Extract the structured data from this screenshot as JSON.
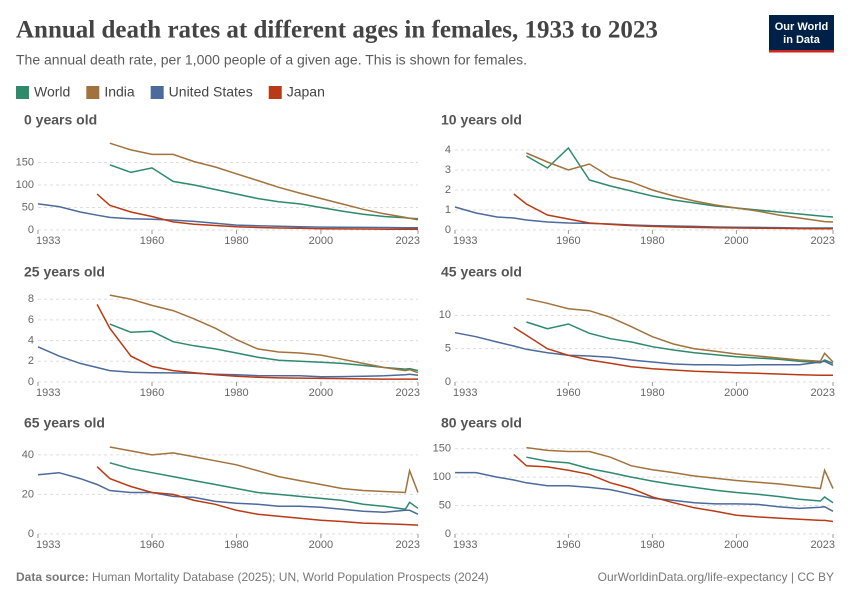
{
  "title": "Annual death rates at different ages in females, 1933 to 2023",
  "subtitle": "The annual death rate, per 1,000 people of a given age. This is shown for females.",
  "logo": [
    "Our World",
    "in Data"
  ],
  "source_label": "Data source:",
  "source": "Human Mortality Database (2025); UN, World Population Prospects (2024)",
  "url": "OurWorldinData.org/life-expectancy | CC BY",
  "chart_data": [
    {
      "type": "line",
      "title": "0 years old",
      "x": [
        1933,
        1938,
        1943,
        1947,
        1950,
        1955,
        1960,
        1965,
        1970,
        1975,
        1980,
        1985,
        1990,
        1995,
        2000,
        2005,
        2010,
        2015,
        2020,
        2021,
        2023
      ],
      "xlim": [
        1933,
        2023
      ],
      "xticks": [
        1933,
        1960,
        1980,
        2000,
        2023
      ],
      "ylim": [
        0,
        200
      ],
      "yticks": [
        0,
        50,
        100,
        150
      ],
      "grid": true,
      "series": [
        {
          "name": "World",
          "color": "#2d8a6a",
          "values": [
            null,
            null,
            null,
            null,
            145,
            128,
            138,
            108,
            100,
            90,
            80,
            70,
            63,
            58,
            50,
            42,
            35,
            30,
            27,
            26,
            25
          ]
        },
        {
          "name": "India",
          "color": "#a2723c",
          "values": [
            null,
            null,
            null,
            null,
            193,
            178,
            168,
            168,
            152,
            140,
            125,
            110,
            95,
            82,
            70,
            58,
            46,
            36,
            28,
            26,
            23
          ]
        },
        {
          "name": "United States",
          "color": "#4c6a9c",
          "values": [
            58,
            52,
            40,
            33,
            28,
            25,
            24,
            22,
            19,
            15,
            11,
            9.5,
            8.5,
            7,
            6.5,
            6.2,
            5.8,
            5.5,
            5.2,
            5.1,
            5.0
          ]
        },
        {
          "name": "Japan",
          "color": "#b93a14",
          "values": [
            null,
            null,
            null,
            80,
            55,
            40,
            30,
            18,
            13,
            10,
            7,
            5.5,
            4.5,
            4,
            3,
            2.5,
            2.2,
            1.8,
            1.6,
            1.6,
            1.5
          ]
        }
      ]
    },
    {
      "type": "line",
      "title": "10 years old",
      "x": [
        1933,
        1938,
        1943,
        1947,
        1950,
        1955,
        1960,
        1965,
        1970,
        1975,
        1980,
        1985,
        1990,
        1995,
        2000,
        2005,
        2010,
        2015,
        2020,
        2021,
        2023
      ],
      "xlim": [
        1933,
        2023
      ],
      "xticks": [
        1933,
        1960,
        1980,
        2000,
        2023
      ],
      "ylim": [
        0,
        4.5
      ],
      "yticks": [
        0,
        1,
        2,
        3,
        4
      ],
      "grid": true,
      "series": [
        {
          "color": "#2d8a6a",
          "values": [
            null,
            null,
            null,
            null,
            3.7,
            3.1,
            4.1,
            2.5,
            2.2,
            1.95,
            1.7,
            1.5,
            1.35,
            1.2,
            1.1,
            1.0,
            0.9,
            0.8,
            0.7,
            0.68,
            0.65
          ]
        },
        {
          "color": "#a2723c",
          "values": [
            null,
            null,
            null,
            null,
            3.85,
            3.4,
            3.0,
            3.3,
            2.65,
            2.4,
            2.0,
            1.7,
            1.45,
            1.25,
            1.1,
            0.95,
            0.75,
            0.6,
            0.45,
            0.42,
            0.4
          ]
        },
        {
          "color": "#4c6a9c",
          "values": [
            1.15,
            0.85,
            0.65,
            0.6,
            0.5,
            0.4,
            0.35,
            0.33,
            0.3,
            0.25,
            0.22,
            0.2,
            0.18,
            0.15,
            0.14,
            0.13,
            0.12,
            0.1,
            0.1,
            0.1,
            0.1
          ]
        },
        {
          "color": "#b93a14",
          "values": [
            null,
            null,
            null,
            1.8,
            1.3,
            0.75,
            0.55,
            0.35,
            0.28,
            0.22,
            0.18,
            0.15,
            0.13,
            0.11,
            0.1,
            0.09,
            0.08,
            0.07,
            0.06,
            0.06,
            0.06
          ]
        }
      ]
    },
    {
      "type": "line",
      "title": "25 years old",
      "x": [
        1933,
        1938,
        1943,
        1947,
        1950,
        1955,
        1960,
        1965,
        1970,
        1975,
        1980,
        1985,
        1990,
        1995,
        2000,
        2005,
        2010,
        2015,
        2020,
        2021,
        2023
      ],
      "xlim": [
        1933,
        2023
      ],
      "xticks": [
        1933,
        1960,
        1980,
        2000,
        2023
      ],
      "ylim": [
        0,
        8.7
      ],
      "yticks": [
        0,
        2,
        4,
        6,
        8
      ],
      "grid": true,
      "series": [
        {
          "color": "#2d8a6a",
          "values": [
            null,
            null,
            null,
            null,
            5.6,
            4.8,
            4.9,
            3.9,
            3.5,
            3.2,
            2.8,
            2.4,
            2.1,
            2.0,
            1.9,
            1.8,
            1.6,
            1.4,
            1.25,
            1.3,
            1.1
          ]
        },
        {
          "color": "#a2723c",
          "values": [
            null,
            null,
            null,
            null,
            8.4,
            8.0,
            7.4,
            6.9,
            6.1,
            5.2,
            4.1,
            3.2,
            2.9,
            2.8,
            2.6,
            2.2,
            1.8,
            1.4,
            1.1,
            1.2,
            0.9
          ]
        },
        {
          "color": "#4c6a9c",
          "values": [
            3.4,
            2.5,
            1.8,
            1.4,
            1.1,
            0.95,
            0.9,
            0.88,
            0.85,
            0.75,
            0.7,
            0.62,
            0.6,
            0.6,
            0.5,
            0.52,
            0.55,
            0.6,
            0.7,
            0.75,
            0.65
          ]
        },
        {
          "color": "#b93a14",
          "values": [
            null,
            null,
            null,
            7.5,
            5.2,
            2.5,
            1.5,
            1.1,
            0.9,
            0.7,
            0.55,
            0.45,
            0.4,
            0.38,
            0.35,
            0.33,
            0.3,
            0.28,
            0.28,
            0.28,
            0.28
          ]
        }
      ]
    },
    {
      "type": "line",
      "title": "45 years old",
      "x": [
        1933,
        1938,
        1943,
        1947,
        1950,
        1955,
        1960,
        1965,
        1970,
        1975,
        1980,
        1985,
        1990,
        1995,
        2000,
        2005,
        2010,
        2015,
        2020,
        2021,
        2023
      ],
      "xlim": [
        1933,
        2023
      ],
      "xticks": [
        1933,
        1960,
        1980,
        2000,
        2023
      ],
      "ylim": [
        0,
        13.5
      ],
      "yticks": [
        0,
        5,
        10
      ],
      "grid": true,
      "series": [
        {
          "color": "#2d8a6a",
          "values": [
            null,
            null,
            null,
            null,
            9.0,
            8.0,
            8.7,
            7.3,
            6.5,
            6.0,
            5.3,
            4.8,
            4.4,
            4.1,
            3.8,
            3.6,
            3.4,
            3.1,
            2.9,
            3.3,
            2.8
          ]
        },
        {
          "color": "#a2723c",
          "values": [
            null,
            null,
            null,
            null,
            12.5,
            11.8,
            11.0,
            10.7,
            9.7,
            8.3,
            6.8,
            5.7,
            5.0,
            4.6,
            4.2,
            3.9,
            3.6,
            3.3,
            3.1,
            4.3,
            3.0
          ]
        },
        {
          "color": "#4c6a9c",
          "values": [
            7.4,
            6.8,
            6.0,
            5.4,
            4.9,
            4.4,
            4.0,
            3.9,
            3.7,
            3.3,
            3.0,
            2.7,
            2.6,
            2.6,
            2.5,
            2.6,
            2.6,
            2.6,
            3.0,
            3.1,
            2.5
          ]
        },
        {
          "color": "#b93a14",
          "values": [
            null,
            null,
            null,
            8.2,
            7.0,
            5.0,
            4.0,
            3.3,
            2.8,
            2.3,
            2.0,
            1.8,
            1.6,
            1.5,
            1.4,
            1.3,
            1.2,
            1.1,
            1.0,
            1.0,
            1.0
          ]
        }
      ]
    },
    {
      "type": "line",
      "title": "65 years old",
      "x": [
        1933,
        1938,
        1943,
        1947,
        1950,
        1955,
        1960,
        1965,
        1970,
        1975,
        1980,
        1985,
        1990,
        1995,
        2000,
        2005,
        2010,
        2015,
        2020,
        2021,
        2023
      ],
      "xlim": [
        1933,
        2023
      ],
      "xticks": [
        1933,
        1960,
        1980,
        2000,
        2023
      ],
      "ylim": [
        0,
        46
      ],
      "yticks": [
        0,
        20,
        40
      ],
      "grid": true,
      "series": [
        {
          "color": "#2d8a6a",
          "values": [
            null,
            null,
            null,
            null,
            36,
            33,
            31,
            29,
            27,
            25,
            23,
            21,
            20,
            19,
            18,
            17,
            15,
            14,
            12.5,
            16,
            13
          ]
        },
        {
          "color": "#a2723c",
          "values": [
            null,
            null,
            null,
            null,
            44,
            42,
            40,
            41,
            39,
            37,
            35,
            32,
            29,
            27,
            25,
            23,
            22,
            21.5,
            21,
            32,
            21
          ]
        },
        {
          "color": "#4c6a9c",
          "values": [
            30,
            31,
            28,
            25,
            22,
            21,
            21,
            19,
            18.5,
            16.5,
            15.5,
            15,
            14,
            14,
            13.5,
            12.5,
            11.5,
            11,
            12,
            12,
            10
          ]
        },
        {
          "color": "#b93a14",
          "values": [
            null,
            null,
            null,
            34,
            28,
            24,
            21,
            20,
            17,
            15,
            12,
            10,
            9,
            8,
            7,
            6.3,
            5.5,
            5.2,
            4.8,
            4.7,
            4.5
          ]
        }
      ]
    },
    {
      "type": "line",
      "title": "80 years old",
      "x": [
        1933,
        1938,
        1943,
        1947,
        1950,
        1955,
        1960,
        1965,
        1970,
        1975,
        1980,
        1985,
        1990,
        1995,
        2000,
        2005,
        2010,
        2015,
        2020,
        2021,
        2023
      ],
      "xlim": [
        1933,
        2023
      ],
      "xticks": [
        1933,
        1960,
        1980,
        2000,
        2023
      ],
      "ylim": [
        0,
        160
      ],
      "yticks": [
        0,
        50,
        100,
        150
      ],
      "grid": true,
      "series": [
        {
          "color": "#2d8a6a",
          "values": [
            null,
            null,
            null,
            null,
            135,
            128,
            125,
            115,
            108,
            100,
            93,
            87,
            82,
            77,
            73,
            70,
            66,
            61,
            58,
            65,
            55
          ]
        },
        {
          "color": "#a2723c",
          "values": [
            null,
            null,
            null,
            null,
            152,
            147,
            145,
            145,
            135,
            120,
            113,
            108,
            102,
            98,
            94,
            91,
            88,
            84,
            80,
            112,
            80
          ]
        },
        {
          "color": "#4c6a9c",
          "values": [
            108,
            108,
            100,
            95,
            90,
            85,
            85,
            82,
            78,
            70,
            63,
            59,
            55,
            53,
            53,
            52,
            48,
            45,
            47,
            48,
            40
          ]
        },
        {
          "color": "#b93a14",
          "values": [
            null,
            null,
            null,
            140,
            120,
            118,
            112,
            105,
            90,
            80,
            65,
            55,
            46,
            40,
            33,
            30,
            28,
            26,
            24,
            24,
            22
          ]
        }
      ]
    }
  ]
}
